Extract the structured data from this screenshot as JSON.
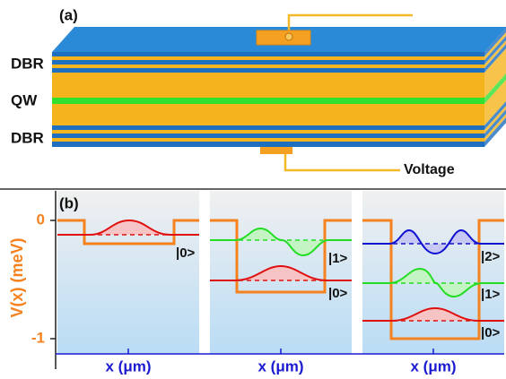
{
  "panel_a": {
    "label": "(a)",
    "layers": [
      "DBR",
      "QW",
      "DBR"
    ],
    "voltage": "Voltage"
  },
  "panel_b": {
    "label": "(b)",
    "y_label": "V(x) (meV)",
    "y_ticks": [
      0,
      -1
    ],
    "x_labels": [
      "x (μm)",
      "x (μm)",
      "x (μm)"
    ],
    "states": [
      [
        "|0>"
      ],
      [
        "|1>",
        "|0>"
      ],
      [
        "|2>",
        "|1>",
        "|0>"
      ]
    ]
  }
}
